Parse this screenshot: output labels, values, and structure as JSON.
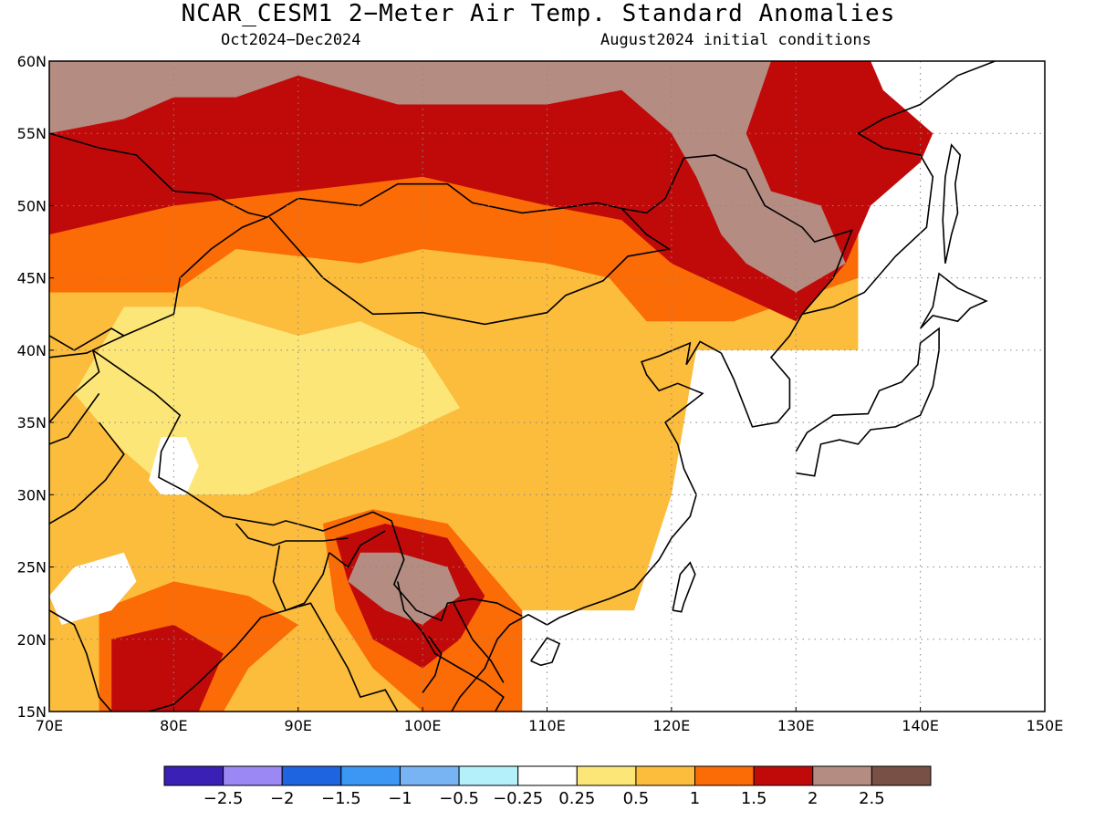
{
  "title": "NCAR_CESM1 2−Meter Air Temp. Standard Anomalies",
  "subtitle_left": "Oct2024−Dec2024",
  "subtitle_right": "August2024 initial conditions",
  "chart_data": {
    "type": "heatmap",
    "xlim": [
      70,
      150
    ],
    "ylim": [
      15,
      60
    ],
    "xticks": [
      {
        "value": 70,
        "label": "70E"
      },
      {
        "value": 80,
        "label": "80E"
      },
      {
        "value": 90,
        "label": "90E"
      },
      {
        "value": 100,
        "label": "100E"
      },
      {
        "value": 110,
        "label": "110E"
      },
      {
        "value": 120,
        "label": "120E"
      },
      {
        "value": 130,
        "label": "130E"
      },
      {
        "value": 140,
        "label": "140E"
      },
      {
        "value": 150,
        "label": "150E"
      }
    ],
    "yticks": [
      {
        "value": 15,
        "label": "15N"
      },
      {
        "value": 20,
        "label": "20N"
      },
      {
        "value": 25,
        "label": "25N"
      },
      {
        "value": 30,
        "label": "30N"
      },
      {
        "value": 35,
        "label": "35N"
      },
      {
        "value": 40,
        "label": "40N"
      },
      {
        "value": 45,
        "label": "45N"
      },
      {
        "value": 50,
        "label": "50N"
      },
      {
        "value": 55,
        "label": "55N"
      },
      {
        "value": 60,
        "label": "60N"
      }
    ],
    "grid": true,
    "colorbar": {
      "colors": [
        "#3a20b4",
        "#9c88f4",
        "#1e64e0",
        "#3c96f4",
        "#78b4f4",
        "#b4f0fa",
        "#ffffff",
        "#fde678",
        "#fcbc3c",
        "#fb6b06",
        "#c00a0a",
        "#b48c82",
        "#785046"
      ],
      "labels": [
        "−2.5",
        "−2",
        "−1.5",
        "−1",
        "−0.5",
        "−0.25",
        "0.25",
        "0.5",
        "1",
        "1.5",
        "2",
        "2.5"
      ]
    },
    "regions": [
      {
        "name": "warm-base",
        "level": "1",
        "color": "#fcbc3c",
        "lonlat": [
          [
            70,
            15
          ],
          [
            70,
            60
          ],
          [
            135,
            60
          ],
          [
            135,
            40
          ],
          [
            122,
            40
          ],
          [
            120,
            30
          ],
          [
            117,
            22
          ],
          [
            108,
            22
          ],
          [
            108,
            15
          ]
        ]
      },
      {
        "name": "northwest-strong",
        "level": "1.5",
        "color": "#fb6b06",
        "lonlat": [
          [
            70,
            60
          ],
          [
            70,
            44
          ],
          [
            80,
            44
          ],
          [
            85,
            47
          ],
          [
            95,
            46
          ],
          [
            100,
            47
          ],
          [
            110,
            46
          ],
          [
            115,
            45
          ],
          [
            118,
            42
          ],
          [
            125,
            42
          ],
          [
            135,
            45
          ],
          [
            135,
            60
          ]
        ]
      },
      {
        "name": "north-very-strong",
        "level": "2",
        "color": "#c00a0a",
        "lonlat": [
          [
            70,
            60
          ],
          [
            70,
            48
          ],
          [
            80,
            50
          ],
          [
            90,
            51
          ],
          [
            100,
            52
          ],
          [
            110,
            50
          ],
          [
            116,
            49
          ],
          [
            120,
            46
          ],
          [
            125,
            44
          ],
          [
            130,
            42
          ],
          [
            134,
            46
          ],
          [
            136,
            50
          ],
          [
            140,
            53
          ],
          [
            141,
            55
          ],
          [
            137,
            58
          ],
          [
            136,
            60
          ]
        ]
      },
      {
        "name": "siberia-extreme",
        "level": "2.5",
        "color": "#b48c82",
        "lonlat": [
          [
            70,
            60
          ],
          [
            70,
            55
          ],
          [
            76,
            56
          ],
          [
            80,
            57.5
          ],
          [
            85,
            57.5
          ],
          [
            90,
            59
          ],
          [
            98,
            57
          ],
          [
            110,
            57
          ],
          [
            116,
            58
          ],
          [
            120,
            55
          ],
          [
            122,
            52
          ],
          [
            124,
            48
          ],
          [
            126,
            46
          ],
          [
            130,
            44
          ],
          [
            134,
            46
          ],
          [
            132,
            50
          ],
          [
            128,
            51
          ],
          [
            126,
            55
          ],
          [
            128,
            60
          ]
        ]
      },
      {
        "name": "central-asia-moderate",
        "level": "0.5",
        "color": "#fde678",
        "lonlat": [
          [
            72,
            37
          ],
          [
            76,
            43
          ],
          [
            82,
            43
          ],
          [
            90,
            41
          ],
          [
            95,
            42
          ],
          [
            100,
            40
          ],
          [
            103,
            36
          ],
          [
            98,
            34
          ],
          [
            92,
            32
          ],
          [
            86,
            30
          ],
          [
            80,
            30
          ],
          [
            76,
            33
          ]
        ]
      },
      {
        "name": "indochina-strong",
        "level": "1.5",
        "color": "#fb6b06",
        "lonlat": [
          [
            92,
            28
          ],
          [
            96,
            29
          ],
          [
            102,
            28
          ],
          [
            106,
            24
          ],
          [
            108,
            22
          ],
          [
            108,
            15
          ],
          [
            100,
            15
          ],
          [
            96,
            18
          ],
          [
            93,
            22
          ]
        ]
      },
      {
        "name": "indochina-very-strong",
        "level": "2",
        "color": "#c00a0a",
        "lonlat": [
          [
            93,
            27
          ],
          [
            97,
            28
          ],
          [
            102,
            27
          ],
          [
            105,
            23
          ],
          [
            103,
            20
          ],
          [
            100,
            18
          ],
          [
            96,
            20
          ],
          [
            94,
            24
          ]
        ]
      },
      {
        "name": "yunnan-extreme",
        "level": "2.5",
        "color": "#b48c82",
        "lonlat": [
          [
            95,
            26
          ],
          [
            98,
            26
          ],
          [
            102,
            25
          ],
          [
            103,
            23
          ],
          [
            100,
            21
          ],
          [
            97,
            22
          ],
          [
            94,
            24
          ]
        ]
      },
      {
        "name": "india-strong",
        "level": "1.5",
        "color": "#fb6b06",
        "lonlat": [
          [
            74,
            15
          ],
          [
            74,
            22
          ],
          [
            80,
            24
          ],
          [
            86,
            23
          ],
          [
            90,
            21
          ],
          [
            86,
            18
          ],
          [
            84,
            15
          ]
        ]
      },
      {
        "name": "india-very-strong",
        "level": "2",
        "color": "#c00a0a",
        "lonlat": [
          [
            75,
            15
          ],
          [
            75,
            20
          ],
          [
            80,
            21
          ],
          [
            84,
            19
          ],
          [
            82,
            15
          ]
        ]
      },
      {
        "name": "tibet-weak",
        "level": "0.25",
        "color": "#ffffff",
        "lonlat": [
          [
            78,
            31
          ],
          [
            79,
            34
          ],
          [
            81,
            34
          ],
          [
            82,
            32
          ],
          [
            81,
            30
          ],
          [
            79,
            30
          ]
        ]
      },
      {
        "name": "india-west-weak",
        "level": "0.25",
        "color": "#ffffff",
        "lonlat": [
          [
            70,
            23
          ],
          [
            72,
            25
          ],
          [
            76,
            26
          ],
          [
            77,
            24
          ],
          [
            75,
            22
          ],
          [
            71,
            21
          ]
        ]
      },
      {
        "name": "manchuria-strong",
        "level": "2",
        "color": "#c00a0a",
        "lonlat": [
          [
            128,
            60
          ],
          [
            128,
            56
          ],
          [
            131,
            55
          ],
          [
            135,
            56
          ],
          [
            137,
            58
          ],
          [
            136,
            60
          ]
        ]
      }
    ]
  }
}
